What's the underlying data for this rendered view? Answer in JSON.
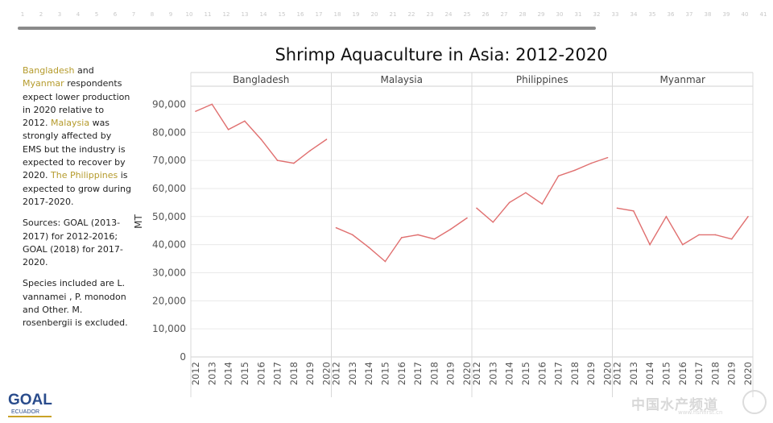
{
  "dashboard": {
    "slider_labels": [
      "1",
      "2",
      "3",
      "4",
      "5",
      "6",
      "7",
      "8",
      "9",
      "10",
      "11",
      "12",
      "13",
      "14",
      "15",
      "16",
      "17",
      "18",
      "19",
      "20",
      "21",
      "22",
      "23",
      "24",
      "25",
      "26",
      "27",
      "28",
      "29",
      "30",
      "31",
      "32",
      "33",
      "34",
      "35",
      "36",
      "37",
      "38",
      "39",
      "40",
      "41"
    ]
  },
  "sidebar": {
    "p1": [
      "Bangladesh",
      " and ",
      "Myanmar",
      " respondents expect lower production in 2020 relative to 2012. ",
      "Malaysia",
      " was strongly affected by EMS but the industry is expected to recover by 2020. ",
      "The Philippines",
      " is expected to grow during 2017-2020."
    ],
    "p2": "Sources: GOAL (2013-2017) for 2012-2016; GOAL (2018) for 2017-2020.",
    "p3": "Species included are L. vannamei , P. monodon and Other. M. rosenbergii is excluded.",
    "highlight_color": "#b59b2c"
  },
  "logo": {
    "text": "GOAL",
    "subtext": "ECUADOR"
  },
  "watermark": {
    "text": "中国水产频道",
    "url": "www.fishfirst.cn"
  },
  "chart_data": {
    "type": "line",
    "title": "Shrimp Aquaculture in Asia: 2012-2020",
    "ylabel": "MT",
    "xlabel": "",
    "ylim": [
      0,
      95000
    ],
    "yticks": [
      0,
      10000,
      20000,
      30000,
      40000,
      50000,
      60000,
      70000,
      80000,
      90000
    ],
    "ytick_labels": [
      "0",
      "10,000",
      "20,000",
      "30,000",
      "40,000",
      "50,000",
      "60,000",
      "70,000",
      "80,000",
      "90,000"
    ],
    "x": [
      "2012",
      "2013",
      "2014",
      "2015",
      "2016",
      "2017",
      "2018",
      "2019",
      "2020"
    ],
    "grid": true,
    "line_color": "#e07070",
    "panels": [
      {
        "name": "Bangladesh",
        "values": [
          87500,
          90000,
          81000,
          84000,
          77500,
          70000,
          69000,
          73500,
          77500
        ]
      },
      {
        "name": "Malaysia",
        "values": [
          46000,
          43500,
          39000,
          34000,
          42500,
          43500,
          42000,
          45500,
          49500
        ]
      },
      {
        "name": "Philippines",
        "values": [
          53000,
          48000,
          55000,
          58500,
          54500,
          64500,
          66500,
          69000,
          71000
        ]
      },
      {
        "name": "Myanmar",
        "values": [
          53000,
          52000,
          40000,
          50000,
          40000,
          43500,
          43500,
          42000,
          50000
        ]
      }
    ]
  }
}
